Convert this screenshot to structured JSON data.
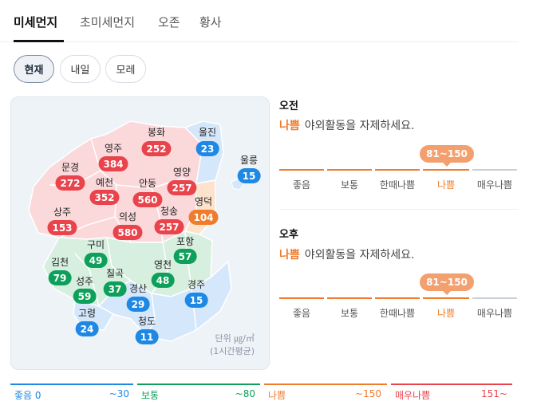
{
  "tabs": [
    "미세먼지",
    "초미세먼지",
    "오존",
    "황사"
  ],
  "time_pills": [
    "현재",
    "내일",
    "모레"
  ],
  "colors": {
    "bad": "#e9434c",
    "caution": "#f07b2b",
    "normal": "#0ea05a",
    "good": "#1e88e5"
  },
  "map": {
    "regions": [
      {
        "name": "봉화",
        "value": "252",
        "level": "red"
      },
      {
        "name": "울진",
        "value": "23",
        "level": "blue"
      },
      {
        "name": "영주",
        "value": "384",
        "level": "red"
      },
      {
        "name": "울릉",
        "value": "15",
        "level": "blue"
      },
      {
        "name": "문경",
        "value": "272",
        "level": "red"
      },
      {
        "name": "예천",
        "value": "352",
        "level": "red"
      },
      {
        "name": "안동",
        "value": "560",
        "level": "red"
      },
      {
        "name": "영양",
        "value": "257",
        "level": "red"
      },
      {
        "name": "영덕",
        "value": "104",
        "level": "orange"
      },
      {
        "name": "상주",
        "value": "153",
        "level": "red"
      },
      {
        "name": "의성",
        "value": "580",
        "level": "red"
      },
      {
        "name": "청송",
        "value": "257",
        "level": "red"
      },
      {
        "name": "구미",
        "value": "49",
        "level": "green"
      },
      {
        "name": "포항",
        "value": "57",
        "level": "green"
      },
      {
        "name": "김천",
        "value": "79",
        "level": "green"
      },
      {
        "name": "칠곡",
        "value": "37",
        "level": "green"
      },
      {
        "name": "영천",
        "value": "48",
        "level": "green"
      },
      {
        "name": "성주",
        "value": "59",
        "level": "green"
      },
      {
        "name": "경산",
        "value": "29",
        "level": "blue"
      },
      {
        "name": "경주",
        "value": "15",
        "level": "blue"
      },
      {
        "name": "고령",
        "value": "24",
        "level": "blue"
      },
      {
        "name": "청도",
        "value": "11",
        "level": "blue"
      }
    ],
    "unit_line1": "단위 ㎍/㎥",
    "unit_line2": "(1시간평균)"
  },
  "forecast": {
    "am": {
      "title": "오전",
      "grade": "나쁨",
      "message": "야외활동을 자제하세요.",
      "range_tip": "81~150",
      "scale": [
        "좋음",
        "보통",
        "한때나쁨",
        "나쁨",
        "매우나쁨"
      ],
      "active_index": 3
    },
    "pm": {
      "title": "오후",
      "grade": "나쁨",
      "message": "야외활동을 자제하세요.",
      "range_tip": "81~150",
      "scale": [
        "좋음",
        "보통",
        "한때나쁨",
        "나쁨",
        "매우나쁨"
      ],
      "active_index": 3
    }
  },
  "legend": [
    {
      "name": "좋음 0",
      "range": "~30",
      "color": "#1e88e5"
    },
    {
      "name": "보통",
      "range": "~80",
      "color": "#0ea05a"
    },
    {
      "name": "나쁨",
      "range": "~150",
      "color": "#f07b2b"
    },
    {
      "name": "매우나쁨",
      "range": "151~",
      "color": "#e9434c"
    }
  ]
}
